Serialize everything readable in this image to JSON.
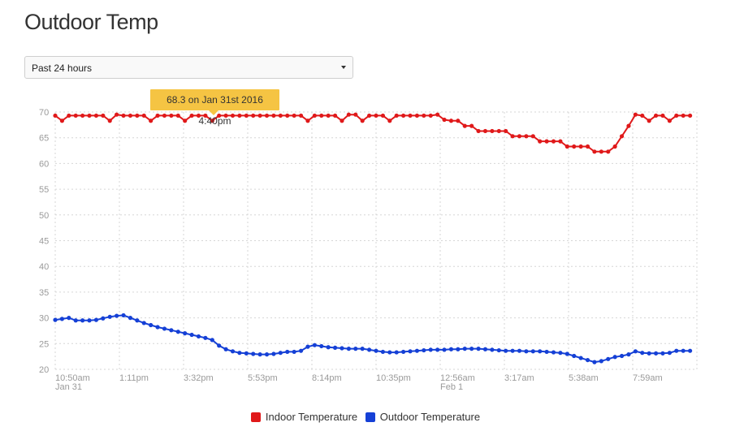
{
  "page": {
    "title": "Outdoor Temp"
  },
  "range_select": {
    "value": "Past 24 hours"
  },
  "tooltip": {
    "text": "68.3 on Jan 31st 2016 4:40pm"
  },
  "legend": {
    "items": [
      {
        "label": "Indoor Temperature",
        "color": "#e0191a"
      },
      {
        "label": "Outdoor Temperature",
        "color": "#1540d6"
      }
    ]
  },
  "chart_data": {
    "type": "line",
    "ylim": [
      20,
      70
    ],
    "y_ticks": [
      70,
      65,
      60,
      55,
      50,
      45,
      40,
      35,
      30,
      25,
      20
    ],
    "x_ticks": [
      {
        "label": "10:50am",
        "sublabel": "Jan 31",
        "hour": 0
      },
      {
        "label": "1:11pm",
        "sublabel": "",
        "hour": 2.35
      },
      {
        "label": "3:32pm",
        "sublabel": "",
        "hour": 4.7
      },
      {
        "label": "5:53pm",
        "sublabel": "",
        "hour": 7.05
      },
      {
        "label": "8:14pm",
        "sublabel": "",
        "hour": 9.4
      },
      {
        "label": "10:35pm",
        "sublabel": "",
        "hour": 11.75
      },
      {
        "label": "12:56am",
        "sublabel": "Feb 1",
        "hour": 14.1
      },
      {
        "label": "3:17am",
        "sublabel": "",
        "hour": 16.45
      },
      {
        "label": "5:38am",
        "sublabel": "",
        "hour": 18.8
      },
      {
        "label": "7:59am",
        "sublabel": "",
        "hour": 21.15
      }
    ],
    "grid": true,
    "legend_position": "bottom",
    "series": [
      {
        "name": "Indoor Temperature",
        "color": "#e0191a",
        "points": [
          [
            0.0,
            69.3
          ],
          [
            0.25,
            68.3
          ],
          [
            0.5,
            69.3
          ],
          [
            0.75,
            69.3
          ],
          [
            1.0,
            69.3
          ],
          [
            1.25,
            69.3
          ],
          [
            1.5,
            69.3
          ],
          [
            1.75,
            69.3
          ],
          [
            2.0,
            68.3
          ],
          [
            2.25,
            69.5
          ],
          [
            2.5,
            69.3
          ],
          [
            2.75,
            69.3
          ],
          [
            3.0,
            69.3
          ],
          [
            3.25,
            69.3
          ],
          [
            3.5,
            68.3
          ],
          [
            3.75,
            69.3
          ],
          [
            4.0,
            69.3
          ],
          [
            4.25,
            69.3
          ],
          [
            4.5,
            69.3
          ],
          [
            4.75,
            68.3
          ],
          [
            5.0,
            69.3
          ],
          [
            5.25,
            69.3
          ],
          [
            5.5,
            69.3
          ],
          [
            5.75,
            68.3
          ],
          [
            6.0,
            69.3
          ],
          [
            6.25,
            69.3
          ],
          [
            6.5,
            69.3
          ],
          [
            6.75,
            69.3
          ],
          [
            7.0,
            69.3
          ],
          [
            7.25,
            69.3
          ],
          [
            7.5,
            69.3
          ],
          [
            7.75,
            69.3
          ],
          [
            8.0,
            69.3
          ],
          [
            8.25,
            69.3
          ],
          [
            8.5,
            69.3
          ],
          [
            8.75,
            69.3
          ],
          [
            9.0,
            69.3
          ],
          [
            9.25,
            68.3
          ],
          [
            9.5,
            69.3
          ],
          [
            9.75,
            69.3
          ],
          [
            10.0,
            69.3
          ],
          [
            10.25,
            69.3
          ],
          [
            10.5,
            68.3
          ],
          [
            10.75,
            69.5
          ],
          [
            11.0,
            69.5
          ],
          [
            11.25,
            68.3
          ],
          [
            11.5,
            69.3
          ],
          [
            11.75,
            69.3
          ],
          [
            12.0,
            69.3
          ],
          [
            12.25,
            68.3
          ],
          [
            12.5,
            69.3
          ],
          [
            12.75,
            69.3
          ],
          [
            13.0,
            69.3
          ],
          [
            13.25,
            69.3
          ],
          [
            13.5,
            69.3
          ],
          [
            13.75,
            69.3
          ],
          [
            14.0,
            69.5
          ],
          [
            14.25,
            68.5
          ],
          [
            14.5,
            68.3
          ],
          [
            14.75,
            68.3
          ],
          [
            15.0,
            67.3
          ],
          [
            15.25,
            67.3
          ],
          [
            15.5,
            66.3
          ],
          [
            15.75,
            66.3
          ],
          [
            16.0,
            66.3
          ],
          [
            16.25,
            66.3
          ],
          [
            16.5,
            66.3
          ],
          [
            16.75,
            65.3
          ],
          [
            17.0,
            65.3
          ],
          [
            17.25,
            65.3
          ],
          [
            17.5,
            65.3
          ],
          [
            17.75,
            64.3
          ],
          [
            18.0,
            64.3
          ],
          [
            18.25,
            64.3
          ],
          [
            18.5,
            64.3
          ],
          [
            18.75,
            63.3
          ],
          [
            19.0,
            63.3
          ],
          [
            19.25,
            63.3
          ],
          [
            19.5,
            63.3
          ],
          [
            19.75,
            62.3
          ],
          [
            20.0,
            62.3
          ],
          [
            20.25,
            62.3
          ],
          [
            20.5,
            63.3
          ],
          [
            20.75,
            65.3
          ],
          [
            21.0,
            67.3
          ],
          [
            21.25,
            69.5
          ],
          [
            21.5,
            69.3
          ],
          [
            21.75,
            68.3
          ],
          [
            22.0,
            69.3
          ],
          [
            22.25,
            69.3
          ],
          [
            22.5,
            68.3
          ],
          [
            22.75,
            69.3
          ],
          [
            23.0,
            69.3
          ],
          [
            23.25,
            69.3
          ]
        ]
      },
      {
        "name": "Outdoor Temperature",
        "color": "#1540d6",
        "points": [
          [
            0.0,
            29.6
          ],
          [
            0.25,
            29.8
          ],
          [
            0.5,
            30.0
          ],
          [
            0.75,
            29.5
          ],
          [
            1.0,
            29.5
          ],
          [
            1.25,
            29.5
          ],
          [
            1.5,
            29.6
          ],
          [
            1.75,
            29.9
          ],
          [
            2.0,
            30.2
          ],
          [
            2.25,
            30.4
          ],
          [
            2.5,
            30.5
          ],
          [
            2.75,
            30.0
          ],
          [
            3.0,
            29.5
          ],
          [
            3.25,
            29.0
          ],
          [
            3.5,
            28.6
          ],
          [
            3.75,
            28.2
          ],
          [
            4.0,
            27.9
          ],
          [
            4.25,
            27.6
          ],
          [
            4.5,
            27.3
          ],
          [
            4.75,
            27.0
          ],
          [
            5.0,
            26.7
          ],
          [
            5.25,
            26.4
          ],
          [
            5.5,
            26.1
          ],
          [
            5.75,
            25.7
          ],
          [
            6.0,
            24.6
          ],
          [
            6.25,
            23.9
          ],
          [
            6.5,
            23.5
          ],
          [
            6.75,
            23.2
          ],
          [
            7.0,
            23.1
          ],
          [
            7.25,
            23.0
          ],
          [
            7.5,
            22.9
          ],
          [
            7.75,
            22.9
          ],
          [
            8.0,
            23.0
          ],
          [
            8.25,
            23.2
          ],
          [
            8.5,
            23.4
          ],
          [
            8.75,
            23.4
          ],
          [
            9.0,
            23.6
          ],
          [
            9.25,
            24.4
          ],
          [
            9.5,
            24.7
          ],
          [
            9.75,
            24.5
          ],
          [
            10.0,
            24.3
          ],
          [
            10.25,
            24.2
          ],
          [
            10.5,
            24.1
          ],
          [
            10.75,
            24.0
          ],
          [
            11.0,
            24.0
          ],
          [
            11.25,
            24.0
          ],
          [
            11.5,
            23.8
          ],
          [
            11.75,
            23.6
          ],
          [
            12.0,
            23.4
          ],
          [
            12.25,
            23.3
          ],
          [
            12.5,
            23.3
          ],
          [
            12.75,
            23.4
          ],
          [
            13.0,
            23.5
          ],
          [
            13.25,
            23.6
          ],
          [
            13.5,
            23.7
          ],
          [
            13.75,
            23.8
          ],
          [
            14.0,
            23.8
          ],
          [
            14.25,
            23.8
          ],
          [
            14.5,
            23.9
          ],
          [
            14.75,
            23.9
          ],
          [
            15.0,
            24.0
          ],
          [
            15.25,
            24.0
          ],
          [
            15.5,
            24.0
          ],
          [
            15.75,
            23.9
          ],
          [
            16.0,
            23.8
          ],
          [
            16.25,
            23.7
          ],
          [
            16.5,
            23.6
          ],
          [
            16.75,
            23.6
          ],
          [
            17.0,
            23.6
          ],
          [
            17.25,
            23.5
          ],
          [
            17.5,
            23.5
          ],
          [
            17.75,
            23.5
          ],
          [
            18.0,
            23.4
          ],
          [
            18.25,
            23.3
          ],
          [
            18.5,
            23.2
          ],
          [
            18.75,
            23.0
          ],
          [
            19.0,
            22.6
          ],
          [
            19.25,
            22.2
          ],
          [
            19.5,
            21.8
          ],
          [
            19.75,
            21.4
          ],
          [
            20.0,
            21.6
          ],
          [
            20.25,
            22.0
          ],
          [
            20.5,
            22.4
          ],
          [
            20.75,
            22.6
          ],
          [
            21.0,
            22.9
          ],
          [
            21.25,
            23.5
          ],
          [
            21.5,
            23.2
          ],
          [
            21.75,
            23.1
          ],
          [
            22.0,
            23.1
          ],
          [
            22.25,
            23.1
          ],
          [
            22.5,
            23.2
          ],
          [
            22.75,
            23.6
          ],
          [
            23.0,
            23.6
          ],
          [
            23.25,
            23.6
          ]
        ]
      }
    ]
  }
}
